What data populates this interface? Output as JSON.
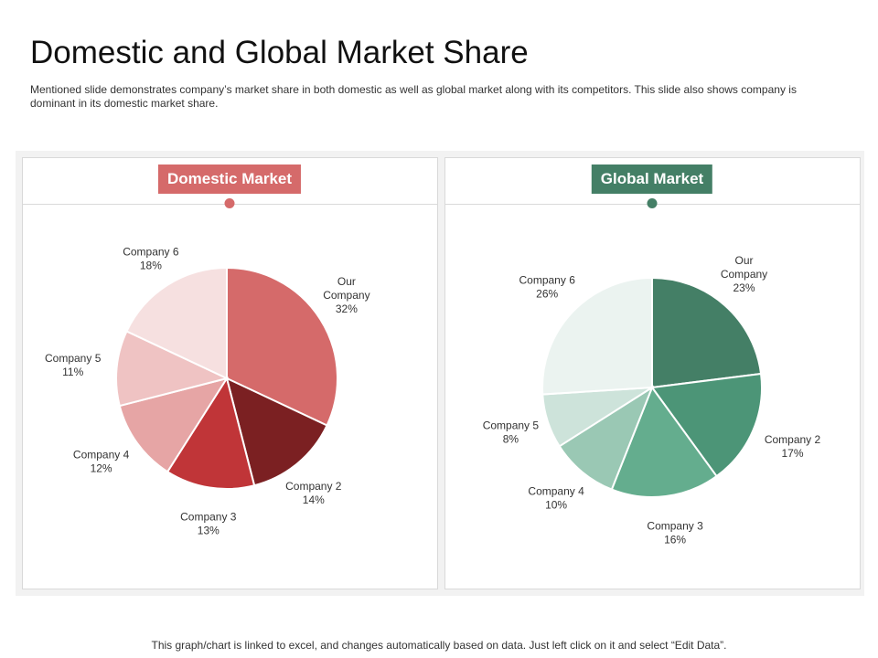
{
  "header": {
    "title": "Domestic and Global Market Share",
    "subtitle": "Mentioned slide demonstrates company’s market share in both domestic as well as global market along with its competitors. This slide also shows company is dominant in its domestic market share."
  },
  "footer": {
    "note": "This graph/chart is linked to excel, and changes automatically based on data. Just left click on it and select “Edit Data”."
  },
  "colors": {
    "domestic_accent": "#d56a6a",
    "global_accent": "#447f66"
  },
  "chart_data": [
    {
      "type": "pie",
      "title": "Domestic Market",
      "categories": [
        "Our Company",
        "Company 2",
        "Company 3",
        "Company 4",
        "Company 5",
        "Company 6"
      ],
      "values": [
        32,
        14,
        13,
        12,
        11,
        18
      ],
      "labels": [
        [
          "Our",
          "Company",
          "32%"
        ],
        [
          "Company 2",
          "14%"
        ],
        [
          "Company 3",
          "13%"
        ],
        [
          "Company 4",
          "12%"
        ],
        [
          "Company 5",
          "11%"
        ],
        [
          "Company 6",
          "18%"
        ]
      ],
      "colors": [
        "#d56a6a",
        "#7b2022",
        "#c03538",
        "#e6a5a5",
        "#efc3c3",
        "#f6e0e0"
      ]
    },
    {
      "type": "pie",
      "title": "Global Market",
      "categories": [
        "Our Company",
        "Company 2",
        "Company 3",
        "Company 4",
        "Company 5",
        "Company 6"
      ],
      "values": [
        23,
        17,
        16,
        10,
        8,
        26
      ],
      "labels": [
        [
          "Our",
          "Company",
          "23%"
        ],
        [
          "Company 2",
          "17%"
        ],
        [
          "Company 3",
          "16%"
        ],
        [
          "Company 4",
          "10%"
        ],
        [
          "Company 5",
          "8%"
        ],
        [
          "Company 6",
          "26%"
        ]
      ],
      "colors": [
        "#447f66",
        "#4c9577",
        "#64ad8e",
        "#9ac8b4",
        "#cde3da",
        "#ebf3f0"
      ]
    }
  ]
}
